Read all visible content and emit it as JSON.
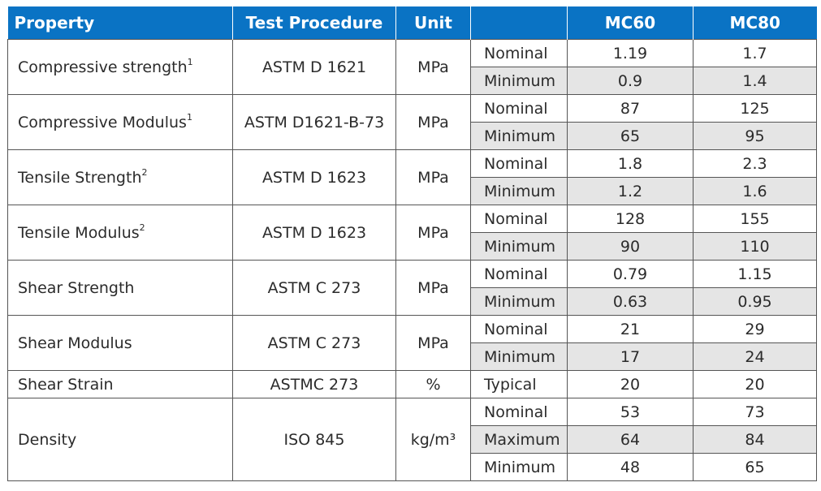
{
  "headers": [
    "Property",
    "Test Procedure",
    "Unit",
    "",
    "MC60",
    "MC80"
  ],
  "rows": [
    {
      "property": "Compressive strength",
      "sup": "1",
      "procedure": "ASTM D 1621",
      "unit": "MPa",
      "subrows": [
        {
          "type": "Nominal",
          "mc60": "1.19",
          "mc80": "1.7"
        },
        {
          "type": "Minimum",
          "mc60": "0.9",
          "mc80": "1.4"
        }
      ]
    },
    {
      "property": "Compressive Modulus",
      "sup": "1",
      "procedure": "ASTM D1621-B-73",
      "unit": "MPa",
      "subrows": [
        {
          "type": "Nominal",
          "mc60": "87",
          "mc80": "125"
        },
        {
          "type": "Minimum",
          "mc60": "65",
          "mc80": "95"
        }
      ]
    },
    {
      "property": "Tensile Strength",
      "sup": "2",
      "procedure": "ASTM D 1623",
      "unit": "MPa",
      "subrows": [
        {
          "type": "Nominal",
          "mc60": "1.8",
          "mc80": "2.3"
        },
        {
          "type": "Minimum",
          "mc60": "1.2",
          "mc80": "1.6"
        }
      ]
    },
    {
      "property": "Tensile Modulus",
      "sup": "2",
      "procedure": "ASTM D 1623",
      "unit": "MPa",
      "subrows": [
        {
          "type": "Nominal",
          "mc60": "128",
          "mc80": "155"
        },
        {
          "type": "Minimum",
          "mc60": "90",
          "mc80": "110"
        }
      ]
    },
    {
      "property": "Shear Strength",
      "sup": "",
      "procedure": "ASTM C 273",
      "unit": "MPa",
      "subrows": [
        {
          "type": "Nominal",
          "mc60": "0.79",
          "mc80": "1.15"
        },
        {
          "type": "Minimum",
          "mc60": "0.63",
          "mc80": "0.95"
        }
      ]
    },
    {
      "property": "Shear Modulus",
      "sup": "",
      "procedure": "ASTM C 273",
      "unit": "MPa",
      "subrows": [
        {
          "type": "Nominal",
          "mc60": "21",
          "mc80": "29"
        },
        {
          "type": "Minimum",
          "mc60": "17",
          "mc80": "24"
        }
      ]
    },
    {
      "property": "Shear Strain",
      "sup": "",
      "procedure": "ASTMC 273",
      "unit": "%",
      "subrows": [
        {
          "type": "Typical",
          "mc60": "20",
          "mc80": "20"
        }
      ]
    },
    {
      "property": "Density",
      "sup": "",
      "procedure": "ISO 845",
      "unit": "kg/m³",
      "subrows": [
        {
          "type": "Nominal",
          "mc60": "53",
          "mc80": "73"
        },
        {
          "type": "Maximum",
          "mc60": "64",
          "mc80": "84"
        },
        {
          "type": "Minimum",
          "mc60": "48",
          "mc80": "65"
        }
      ]
    }
  ],
  "colors": {
    "header_bg": "#0a73c4",
    "header_text": "#ffffff",
    "shade": "#e5e5e5",
    "border": "#555555"
  }
}
